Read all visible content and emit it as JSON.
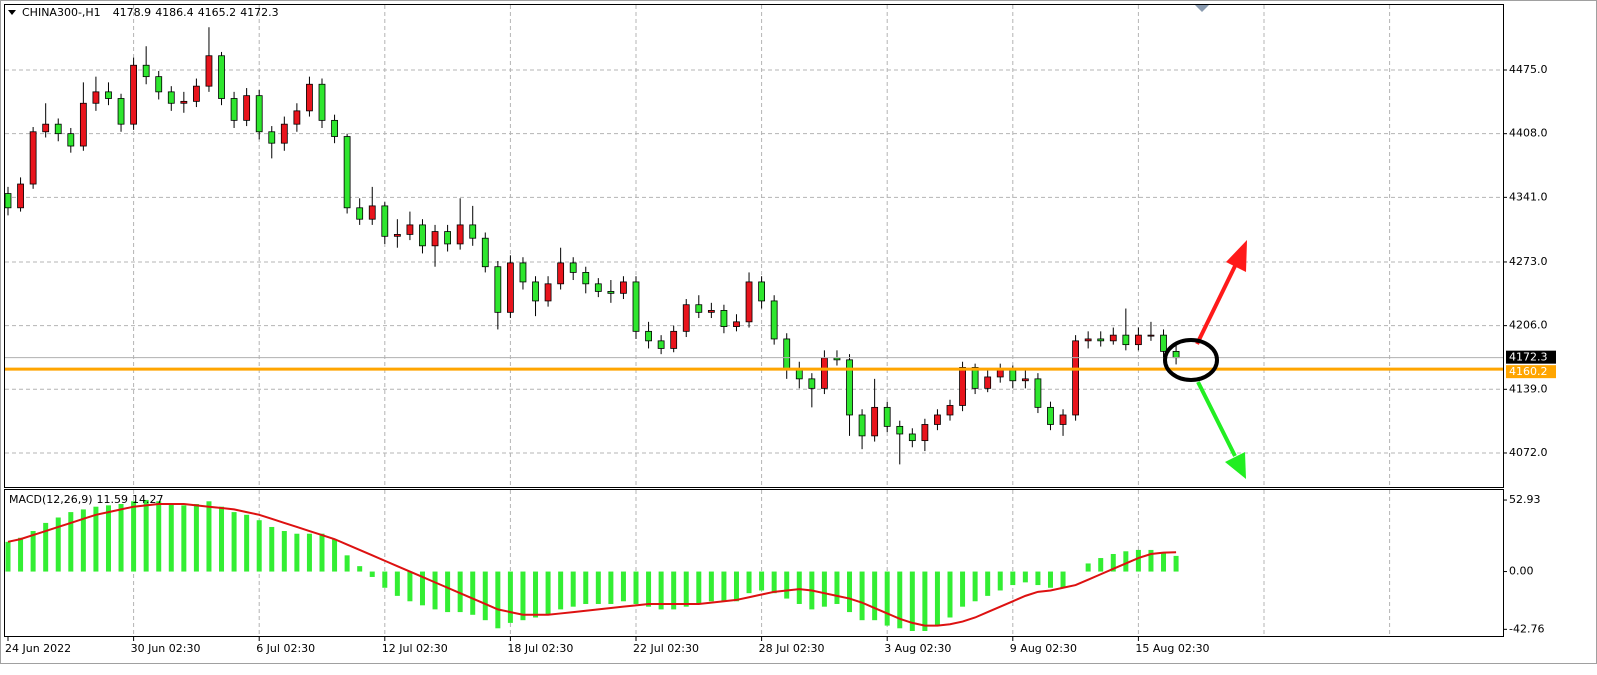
{
  "chart_data": [
    {
      "type": "candlestick",
      "title": "CHINA300-,H1",
      "categories": [
        "24 Jun 2022",
        null,
        null,
        null,
        null,
        null,
        null,
        null,
        null,
        null,
        "30 Jun 02:30",
        null,
        null,
        null,
        null,
        null,
        null,
        null,
        null,
        null,
        "6 Jul 02:30",
        null,
        null,
        null,
        null,
        null,
        null,
        null,
        null,
        null,
        "12 Jul 02:30",
        null,
        null,
        null,
        null,
        null,
        null,
        null,
        null,
        null,
        "18 Jul 02:30",
        null,
        null,
        null,
        null,
        null,
        null,
        null,
        null,
        null,
        "22 Jul 02:30",
        null,
        null,
        null,
        null,
        null,
        null,
        null,
        null,
        null,
        "28 Jul 02:30",
        null,
        null,
        null,
        null,
        null,
        null,
        null,
        null,
        null,
        "3 Aug 02:30",
        null,
        null,
        null,
        null,
        null,
        null,
        null,
        null,
        null,
        "9 Aug 02:30",
        null,
        null,
        null,
        null,
        null,
        null,
        null,
        null,
        null,
        "15 Aug 02:30",
        null,
        null,
        null
      ],
      "open": [
        4345,
        4330,
        4355,
        4410,
        4418,
        4408,
        4395,
        4440,
        4452,
        4445,
        4418,
        4480,
        4468,
        4452,
        4440,
        4442,
        4458,
        4490,
        4445,
        4422,
        4448,
        4410,
        4398,
        4418,
        4432,
        4460,
        4422,
        4405,
        4330,
        4318,
        4332,
        4300,
        4302,
        4312,
        4290,
        4305,
        4292,
        4312,
        4298,
        4268,
        4220,
        4272,
        4252,
        4232,
        4250,
        4272,
        4262,
        4250,
        4242,
        4240,
        4252,
        4200,
        4190,
        4182,
        4200,
        4228,
        4220,
        4222,
        4205,
        4210,
        4252,
        4232,
        4192,
        4160,
        4150,
        4140,
        4172,
        4170,
        4112,
        4090,
        4120,
        4100,
        4092,
        4085,
        4102,
        4112,
        4122,
        4162,
        4140,
        4152,
        4160,
        4148,
        4150,
        4120,
        4102,
        4112,
        4190,
        4192,
        4190,
        4196,
        4186,
        4196,
        4196,
        4178.9
      ],
      "high": [
        4352,
        4362,
        4415,
        4440,
        4424,
        4414,
        4462,
        4468,
        4462,
        4450,
        4488,
        4500,
        4474,
        4458,
        4452,
        4466,
        4520,
        4494,
        4452,
        4456,
        4454,
        4416,
        4426,
        4440,
        4468,
        4466,
        4428,
        4408,
        4340,
        4352,
        4336,
        4318,
        4326,
        4318,
        4312,
        4312,
        4340,
        4332,
        4304,
        4274,
        4280,
        4278,
        4258,
        4258,
        4288,
        4278,
        4268,
        4256,
        4254,
        4258,
        4258,
        4210,
        4196,
        4206,
        4234,
        4238,
        4230,
        4228,
        4218,
        4262,
        4258,
        4238,
        4198,
        4168,
        4156,
        4180,
        4180,
        4176,
        4118,
        4150,
        4126,
        4106,
        4098,
        4108,
        4118,
        4128,
        4168,
        4166,
        4160,
        4166,
        4164,
        4160,
        4156,
        4126,
        4118,
        4196,
        4200,
        4200,
        4204,
        4224,
        4204,
        4210,
        4202,
        4186.4
      ],
      "low": [
        4322,
        4326,
        4350,
        4404,
        4400,
        4388,
        4390,
        4432,
        4438,
        4410,
        4412,
        4460,
        4444,
        4432,
        4430,
        4436,
        4452,
        4438,
        4414,
        4416,
        4402,
        4382,
        4390,
        4410,
        4426,
        4414,
        4398,
        4324,
        4312,
        4312,
        4292,
        4288,
        4296,
        4282,
        4268,
        4284,
        4286,
        4290,
        4262,
        4202,
        4214,
        4244,
        4216,
        4226,
        4244,
        4254,
        4240,
        4236,
        4230,
        4234,
        4192,
        4182,
        4176,
        4178,
        4194,
        4214,
        4214,
        4198,
        4200,
        4204,
        4224,
        4186,
        4150,
        4140,
        4120,
        4134,
        4164,
        4090,
        4076,
        4084,
        4094,
        4060,
        4078,
        4074,
        4096,
        4106,
        4116,
        4134,
        4136,
        4146,
        4140,
        4140,
        4114,
        4096,
        4090,
        4106,
        4182,
        4184,
        4186,
        4180,
        4180,
        4190,
        4172,
        4165.2
      ],
      "close": [
        4330,
        4355,
        4410,
        4418,
        4408,
        4395,
        4440,
        4452,
        4445,
        4418,
        4480,
        4468,
        4452,
        4440,
        4442,
        4458,
        4490,
        4445,
        4422,
        4448,
        4410,
        4398,
        4418,
        4432,
        4460,
        4422,
        4405,
        4330,
        4318,
        4332,
        4300,
        4302,
        4312,
        4290,
        4305,
        4292,
        4312,
        4298,
        4268,
        4220,
        4272,
        4252,
        4232,
        4250,
        4272,
        4262,
        4250,
        4242,
        4240,
        4252,
        4200,
        4190,
        4182,
        4200,
        4228,
        4220,
        4222,
        4205,
        4210,
        4252,
        4232,
        4192,
        4160,
        4150,
        4140,
        4172,
        4170,
        4112,
        4090,
        4120,
        4100,
        4092,
        4085,
        4102,
        4112,
        4122,
        4162,
        4140,
        4152,
        4160,
        4148,
        4150,
        4120,
        4102,
        4112,
        4190,
        4192,
        4190,
        4196,
        4186,
        4196,
        4196,
        4178.9,
        4172.3
      ],
      "up_color": "#e8141c",
      "down_color": "#2ee62e",
      "ylim": [
        4036.2,
        4543.4
      ],
      "yticks": [
        {
          "value": 4072,
          "label": "4072.0"
        },
        {
          "value": 4139,
          "label": "4139.0"
        },
        {
          "value": 4206,
          "label": "4206.0"
        },
        {
          "value": 4273,
          "label": "4273.0"
        },
        {
          "value": 4341,
          "label": "4341.0"
        },
        {
          "value": 4408,
          "label": "4408.0"
        },
        {
          "value": 4475,
          "label": "4475.0"
        }
      ],
      "hline": {
        "value": 4160.2,
        "color": "#ffa500"
      },
      "grid": true
    },
    {
      "type": "macd",
      "title": "MACD(12,26,9)",
      "histogram": {
        "color": "#33ee33",
        "values": [
          22,
          25,
          30,
          36,
          40,
          44,
          46,
          48,
          49,
          50,
          52,
          53,
          52,
          50,
          49,
          50,
          52,
          48,
          44,
          42,
          38,
          33,
          30,
          28,
          28,
          28,
          24,
          12,
          4,
          -4,
          -12,
          -18,
          -22,
          -25,
          -28,
          -30,
          -30,
          -32,
          -36,
          -42,
          -38,
          -36,
          -34,
          -32,
          -28,
          -26,
          -24,
          -24,
          -24,
          -22,
          -24,
          -26,
          -28,
          -28,
          -26,
          -24,
          -22,
          -22,
          -22,
          -16,
          -14,
          -16,
          -20,
          -24,
          -28,
          -26,
          -24,
          -30,
          -36,
          -36,
          -40,
          -42,
          -44,
          -44,
          -40,
          -34,
          -26,
          -22,
          -18,
          -14,
          -10,
          -8,
          -10,
          -12,
          -12,
          0,
          6,
          10,
          13,
          15,
          16,
          16,
          14,
          11.59
        ]
      },
      "signal": {
        "color": "#dd1111",
        "values": [
          22,
          24,
          27,
          30,
          33,
          36,
          39,
          42,
          44,
          46,
          48,
          49,
          50,
          50,
          50,
          49,
          48,
          47,
          46,
          44,
          42,
          39,
          36,
          33,
          30,
          27,
          24,
          20,
          16,
          12,
          8,
          4,
          0,
          -4,
          -8,
          -12,
          -16,
          -20,
          -24,
          -28,
          -30,
          -32,
          -32,
          -32,
          -31,
          -30,
          -29,
          -28,
          -27,
          -26,
          -25,
          -24,
          -24,
          -24,
          -24,
          -24,
          -23,
          -22,
          -21,
          -19,
          -17,
          -15,
          -14,
          -13,
          -14,
          -16,
          -18,
          -20,
          -23,
          -27,
          -31,
          -35,
          -38,
          -40,
          -40,
          -39,
          -37,
          -34,
          -30,
          -26,
          -22,
          -18,
          -15,
          -14,
          -12,
          -10,
          -6,
          -2,
          2,
          6,
          10,
          13,
          14,
          14.27
        ]
      },
      "ylim": [
        -47.7,
        61.1
      ],
      "yticks": [
        -42.76,
        {
          "value": 0,
          "label": "0.00"
        },
        52.93
      ]
    }
  ]
}
